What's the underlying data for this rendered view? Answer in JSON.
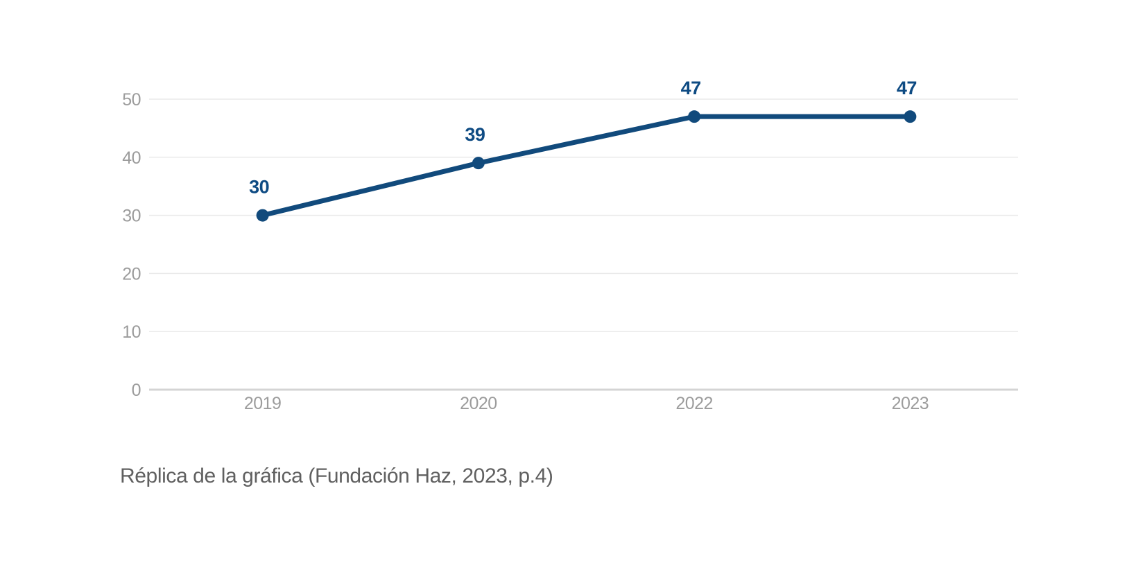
{
  "chart_data": {
    "type": "line",
    "title": "",
    "categories": [
      "2019",
      "2020",
      "2022",
      "2023"
    ],
    "values": [
      30,
      39,
      47,
      47
    ],
    "data_labels": [
      "30",
      "39",
      "47",
      "47"
    ],
    "xlabel": "",
    "ylabel": "",
    "ylim": [
      0,
      50
    ],
    "yticks": [
      0,
      10,
      20,
      30,
      40,
      50
    ],
    "grid": true,
    "legend": false
  },
  "caption": "Réplica de la gráfica (Fundación Haz, 2023, p.4)",
  "colors": {
    "background": "#ffffff",
    "line": "#114a7c",
    "point": "#114a7c",
    "data_label": "#0e4b83",
    "tick_label": "#9c9c9c",
    "gridline": "#eaeaea",
    "axis_line": "#d4d4d4",
    "caption": "#606060"
  }
}
